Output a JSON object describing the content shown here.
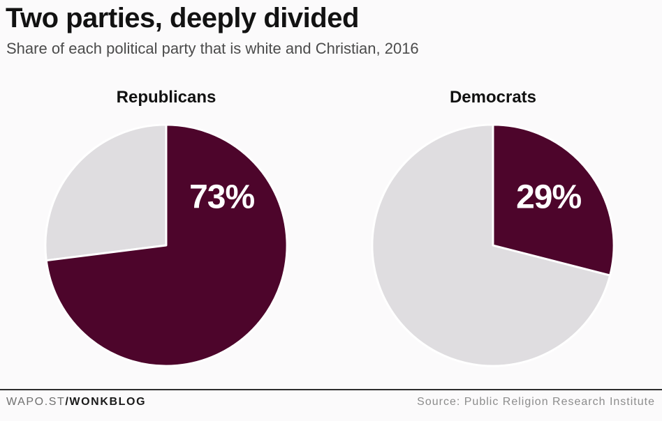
{
  "header": {
    "title": "Two parties, deeply divided",
    "subtitle": "Share of each political party that is white and Christian, 2016"
  },
  "chart_data": {
    "type": "pie",
    "title": "Two parties, deeply divided",
    "subtitle": "Share of each political party that is white and Christian, 2016",
    "unit": "%",
    "start_angle_deg": 0,
    "direction": "clockwise",
    "legend": "none",
    "charts": [
      {
        "label": "Republicans",
        "value": 73,
        "value_label": "73%",
        "slices": [
          {
            "name": "White and Christian",
            "value": 73
          },
          {
            "name": "Other",
            "value": 27
          }
        ]
      },
      {
        "label": "Democrats",
        "value": 29,
        "value_label": "29%",
        "slices": [
          {
            "name": "White and Christian",
            "value": 29
          },
          {
            "name": "Other",
            "value": 71
          }
        ]
      }
    ],
    "colors": {
      "highlight": "#4d052b",
      "remainder": "#dfdde0",
      "label": "#ffffff"
    }
  },
  "footer": {
    "brand_prefix": "WAPO.ST",
    "brand_bold": "/WONKBLOG",
    "source": "Source: Public Religion Research Institute"
  }
}
